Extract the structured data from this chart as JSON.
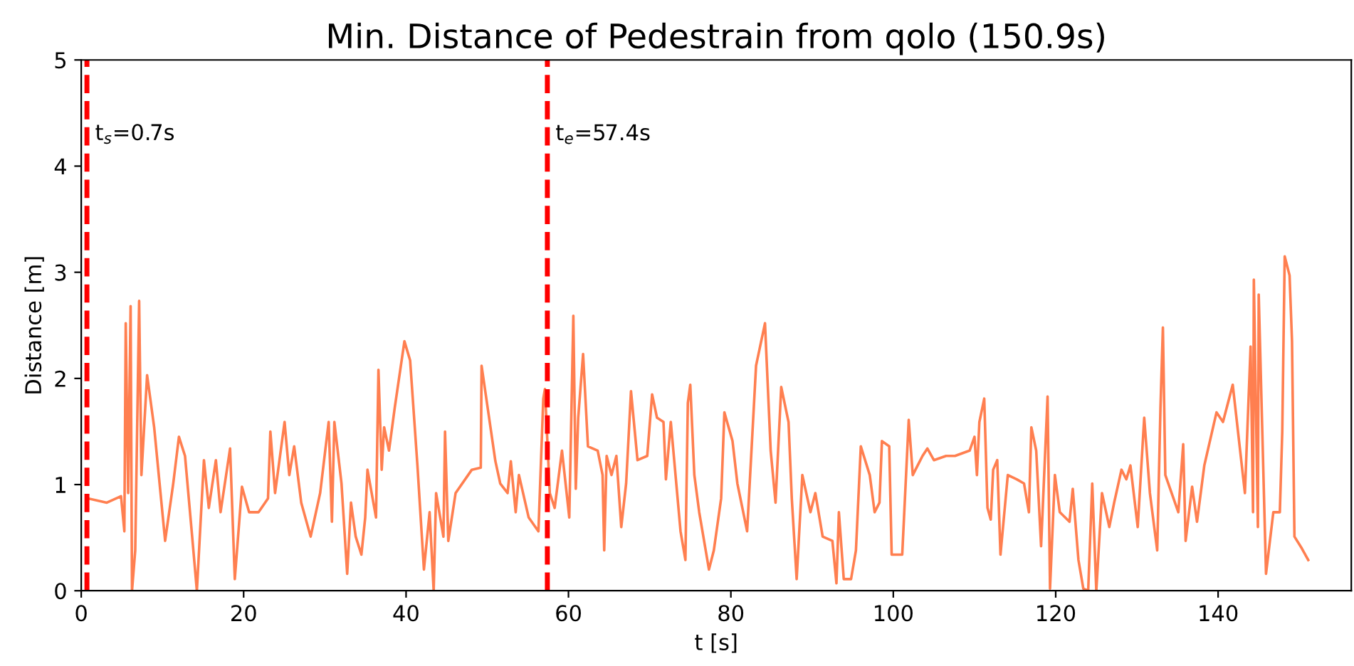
{
  "chart_data": {
    "type": "line",
    "title": "Min. Distance of Pedestrain from qolo (150.9s)",
    "xlabel": "t [s]",
    "ylabel": "Distance [m]",
    "xlim": [
      0,
      156.4
    ],
    "xticks": [
      0,
      20,
      40,
      60,
      80,
      100,
      120,
      140
    ],
    "ylim": [
      0,
      5
    ],
    "yticks": [
      0,
      1,
      2,
      3,
      4,
      5
    ],
    "grid": false,
    "marker": "none",
    "line_style": "solid",
    "series": [
      {
        "color": "#ff7f50",
        "x": [
          0.82,
          3.15,
          4.9,
          5.31,
          5.48,
          5.78,
          6.08,
          6.25,
          6.65,
          7.13,
          7.41,
          8.11,
          8.98,
          10.33,
          11.33,
          12.03,
          12.78,
          13.66,
          14.24,
          15.11,
          15.71,
          16.58,
          17.16,
          18.33,
          18.91,
          19.79,
          20.67,
          21.84,
          23.0,
          23.29,
          23.87,
          25.04,
          25.62,
          26.22,
          27.09,
          28.25,
          29.42,
          30.47,
          30.87,
          31.17,
          32.05,
          32.75,
          33.22,
          33.8,
          34.5,
          34.97,
          35.25,
          36.3,
          36.6,
          37.0,
          37.3,
          37.9,
          38.6,
          39.8,
          40.5,
          41.4,
          42.2,
          42.9,
          43.4,
          43.7,
          44.6,
          44.8,
          45.2,
          46.1,
          48.1,
          49.2,
          49.3,
          51.0,
          51.6,
          52.5,
          52.9,
          53.5,
          53.9,
          55.1,
          56.3,
          56.9,
          57.1,
          57.7,
          58.3,
          59.2,
          60.1,
          60.6,
          60.9,
          61.2,
          61.8,
          62.4,
          63.6,
          64.2,
          64.4,
          64.7,
          65.3,
          65.9,
          66.5,
          67.1,
          67.7,
          68.5,
          69.7,
          70.3,
          70.9,
          71.7,
          72.0,
          72.6,
          73.8,
          74.4,
          74.7,
          75.0,
          75.5,
          76.1,
          77.3,
          77.9,
          78.8,
          79.2,
          80.2,
          80.8,
          82.0,
          83.1,
          84.2,
          84.9,
          85.5,
          86.2,
          87.1,
          87.5,
          88.1,
          88.8,
          89.8,
          90.4,
          91.3,
          92.5,
          93.0,
          93.3,
          93.9,
          94.8,
          95.4,
          96.0,
          97.1,
          97.7,
          98.3,
          98.6,
          99.5,
          99.8,
          101.1,
          101.9,
          102.4,
          103.0,
          103.6,
          104.2,
          105.0,
          106.5,
          107.6,
          109.4,
          110.0,
          110.3,
          110.6,
          111.2,
          111.6,
          112.0,
          112.3,
          112.8,
          113.2,
          114.1,
          115.2,
          116.1,
          116.7,
          117.0,
          117.6,
          118.2,
          119.0,
          119.3,
          119.9,
          120.5,
          121.7,
          122.1,
          122.8,
          123.4,
          124.0,
          124.5,
          125.0,
          125.7,
          126.6,
          127.2,
          128.1,
          128.7,
          129.2,
          130.1,
          130.9,
          131.6,
          132.5,
          132.9,
          133.2,
          133.5,
          135.1,
          135.7,
          136.0,
          136.8,
          137.4,
          138.3,
          139.8,
          140.6,
          141.8,
          143.3,
          144.0,
          144.3,
          144.4,
          144.9,
          145.0,
          145.9,
          146.8,
          147.6,
          147.9,
          148.2,
          148.8,
          149.1,
          149.4,
          150.3,
          151.1
        ],
        "values": [
          0.87,
          0.83,
          0.89,
          0.56,
          2.52,
          0.92,
          2.68,
          0.0,
          0.38,
          2.73,
          1.09,
          2.03,
          1.54,
          0.47,
          1.01,
          1.45,
          1.27,
          0.51,
          0.0,
          1.23,
          0.78,
          1.23,
          0.74,
          1.34,
          0.11,
          0.98,
          0.74,
          0.74,
          0.87,
          1.5,
          0.92,
          1.59,
          1.09,
          1.36,
          0.83,
          0.51,
          0.92,
          1.59,
          0.65,
          1.59,
          1.01,
          0.16,
          0.83,
          0.51,
          0.34,
          0.69,
          1.14,
          0.69,
          2.08,
          1.14,
          1.54,
          1.32,
          1.72,
          2.35,
          2.17,
          1.18,
          0.2,
          0.74,
          0.0,
          0.92,
          0.51,
          1.5,
          0.47,
          0.92,
          1.14,
          1.16,
          2.12,
          1.22,
          1.01,
          0.92,
          1.22,
          0.74,
          1.09,
          0.69,
          0.56,
          1.81,
          1.9,
          0.92,
          0.78,
          1.32,
          0.69,
          2.59,
          0.96,
          1.63,
          2.23,
          1.36,
          1.32,
          1.09,
          0.38,
          1.27,
          1.09,
          1.27,
          0.6,
          1.01,
          1.88,
          1.23,
          1.27,
          1.85,
          1.63,
          1.59,
          1.05,
          1.59,
          0.56,
          0.29,
          1.77,
          1.94,
          1.09,
          0.74,
          0.2,
          0.38,
          0.87,
          1.68,
          1.41,
          1.01,
          0.56,
          2.12,
          2.52,
          1.32,
          0.83,
          1.92,
          1.59,
          0.87,
          0.11,
          1.09,
          0.74,
          0.92,
          0.51,
          0.47,
          0.07,
          0.74,
          0.11,
          0.11,
          0.38,
          1.36,
          1.09,
          0.74,
          0.83,
          1.41,
          1.36,
          0.34,
          0.34,
          1.61,
          1.09,
          1.18,
          1.27,
          1.34,
          1.23,
          1.27,
          1.27,
          1.32,
          1.45,
          1.09,
          1.59,
          1.81,
          0.78,
          0.67,
          1.14,
          1.23,
          0.34,
          1.09,
          1.05,
          1.01,
          0.74,
          1.54,
          1.32,
          0.42,
          1.83,
          0.02,
          1.09,
          0.74,
          0.65,
          0.96,
          0.29,
          0.02,
          0.0,
          1.01,
          0.0,
          0.92,
          0.6,
          0.83,
          1.14,
          1.05,
          1.18,
          0.6,
          1.63,
          0.92,
          0.38,
          1.72,
          2.48,
          1.09,
          0.74,
          1.38,
          0.47,
          0.98,
          0.65,
          1.18,
          1.68,
          1.59,
          1.94,
          0.92,
          2.3,
          0.74,
          2.93,
          0.6,
          2.79,
          0.16,
          0.74,
          0.74,
          1.5,
          3.15,
          2.97,
          2.35,
          0.51,
          0.4,
          0.29
        ]
      }
    ],
    "ref_lines": [
      {
        "axis": "x",
        "value": 0.7,
        "label": "t$_{s}$=0.7s",
        "color": "#ff0000",
        "line_style": "dashed"
      },
      {
        "axis": "x",
        "value": 57.4,
        "label": "t$_{e}$=57.4s",
        "color": "#ff0000",
        "line_style": "dashed"
      }
    ]
  }
}
